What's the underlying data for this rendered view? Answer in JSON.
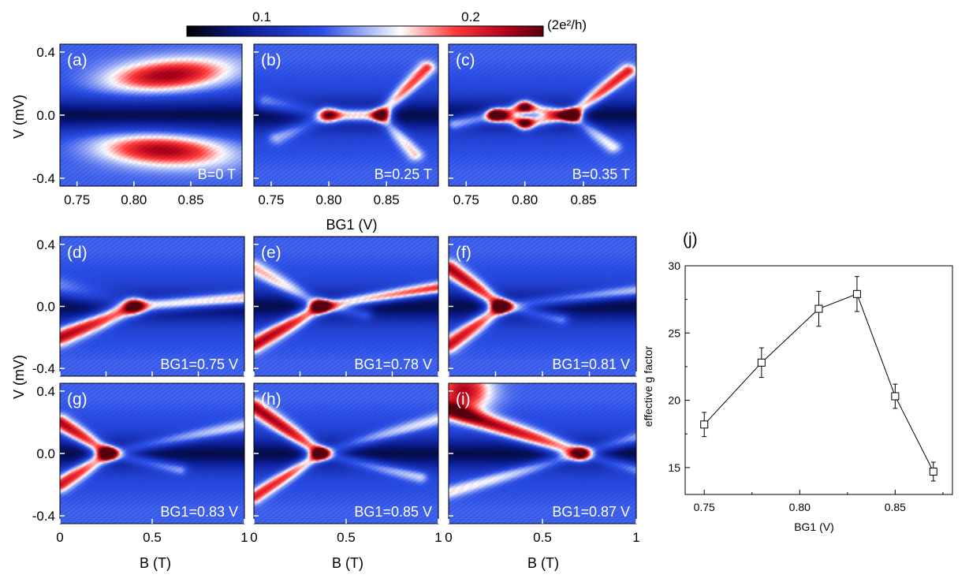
{
  "colorbar": {
    "tick_labels": [
      "0.1",
      "0.2"
    ],
    "tick_values": [
      0.1,
      0.2
    ],
    "unit_label": "(2e²/h)",
    "colors": [
      "#000000",
      "#0a1a8c",
      "#2a4fe8",
      "#ffffff",
      "#ff3a3a",
      "#b0001a",
      "#55000e"
    ]
  },
  "shared_labels": {
    "v_axis": "V (mV)",
    "bg1_axis": "BG1 (V)",
    "b_axis": "B (T)"
  },
  "chart_data": [
    {
      "type": "heatmap",
      "panel": "(a)",
      "annotation": "B=0 T",
      "x_ticks": [
        "0.75",
        "0.80",
        "0.85"
      ],
      "x_tick_values": [
        0.75,
        0.8,
        0.85
      ],
      "y_ticks": [
        "0.4",
        "0.0",
        "-0.4"
      ],
      "y_tick_values": [
        0.4,
        0.0,
        -0.4
      ],
      "xlim": [
        0.735,
        0.895
      ],
      "ylim": [
        -0.45,
        0.45
      ],
      "features": [
        {
          "kind": "blob",
          "x": 0.83,
          "y": 0.25,
          "sx": 0.038,
          "sy": 0.07,
          "amp": 1.0,
          "tilt": 1.2
        },
        {
          "kind": "blob",
          "x": 0.825,
          "y": -0.22,
          "sx": 0.04,
          "sy": 0.07,
          "amp": 1.0,
          "tilt": -0.8
        }
      ]
    },
    {
      "type": "heatmap",
      "panel": "(b)",
      "annotation": "B=0.25 T",
      "x_ticks": [
        "0.75",
        "0.80",
        "0.85"
      ],
      "x_tick_values": [
        0.75,
        0.8,
        0.85
      ],
      "xlim": [
        0.735,
        0.895
      ],
      "ylim": [
        -0.45,
        0.45
      ],
      "features": [
        {
          "kind": "line",
          "x0": 0.8,
          "y0": 0.0,
          "x1": 0.845,
          "y1": 0.0,
          "amp": 1.1,
          "w": 0.035
        },
        {
          "kind": "line",
          "x0": 0.845,
          "y0": 0.0,
          "x1": 0.885,
          "y1": 0.3,
          "amp": 0.8,
          "w": 0.03
        },
        {
          "kind": "line",
          "x0": 0.845,
          "y0": 0.0,
          "x1": 0.875,
          "y1": -0.25,
          "amp": 0.55,
          "w": 0.03
        },
        {
          "kind": "line",
          "x0": 0.8,
          "y0": 0.0,
          "x1": 0.745,
          "y1": 0.08,
          "amp": 0.45,
          "w": 0.04
        },
        {
          "kind": "line",
          "x0": 0.8,
          "y0": 0.0,
          "x1": 0.755,
          "y1": -0.14,
          "amp": 0.4,
          "w": 0.035
        }
      ]
    },
    {
      "type": "heatmap",
      "panel": "(c)",
      "annotation": "B=0.35 T",
      "x_ticks": [
        "0.75",
        "0.80",
        "0.85"
      ],
      "x_tick_values": [
        0.75,
        0.8,
        0.85
      ],
      "xlim": [
        0.735,
        0.895
      ],
      "ylim": [
        -0.45,
        0.45
      ],
      "features": [
        {
          "kind": "line",
          "x0": 0.775,
          "y0": 0.0,
          "x1": 0.8,
          "y1": 0.05,
          "amp": 1.0,
          "w": 0.03
        },
        {
          "kind": "line",
          "x0": 0.8,
          "y0": 0.05,
          "x1": 0.84,
          "y1": 0.0,
          "amp": 1.0,
          "w": 0.03
        },
        {
          "kind": "line",
          "x0": 0.775,
          "y0": 0.0,
          "x1": 0.8,
          "y1": -0.05,
          "amp": 1.0,
          "w": 0.03
        },
        {
          "kind": "line",
          "x0": 0.8,
          "y0": -0.05,
          "x1": 0.84,
          "y1": 0.0,
          "amp": 1.0,
          "w": 0.03
        },
        {
          "kind": "line",
          "x0": 0.84,
          "y0": 0.0,
          "x1": 0.888,
          "y1": 0.28,
          "amp": 0.9,
          "w": 0.03
        },
        {
          "kind": "line",
          "x0": 0.84,
          "y0": 0.0,
          "x1": 0.875,
          "y1": -0.2,
          "amp": 0.5,
          "w": 0.03
        },
        {
          "kind": "line",
          "x0": 0.775,
          "y0": 0.0,
          "x1": 0.74,
          "y1": -0.05,
          "amp": 0.7,
          "w": 0.035
        }
      ]
    },
    {
      "type": "heatmap",
      "panel": "(d)",
      "annotation": "BG1=0.75 V",
      "y_ticks": [
        "0.4",
        "0.0",
        "-0.4"
      ],
      "y_tick_values": [
        0.4,
        0.0,
        -0.4
      ],
      "xlim": [
        0,
        1
      ],
      "ylim": [
        -0.45,
        0.45
      ],
      "features": [
        {
          "kind": "line",
          "x0": 0.0,
          "y0": -0.2,
          "x1": 0.4,
          "y1": 0.0,
          "amp": 1.1,
          "w": 0.04
        },
        {
          "kind": "line",
          "x0": 0.4,
          "y0": 0.0,
          "x1": 1.0,
          "y1": 0.05,
          "amp": 1.0,
          "w": 0.035
        },
        {
          "kind": "line",
          "x0": 0.0,
          "y0": 0.12,
          "x1": 0.4,
          "y1": 0.0,
          "amp": 0.3,
          "w": 0.05
        }
      ]
    },
    {
      "type": "heatmap",
      "panel": "(e)",
      "annotation": "BG1=0.78 V",
      "xlim": [
        0,
        1
      ],
      "ylim": [
        -0.45,
        0.45
      ],
      "features": [
        {
          "kind": "line",
          "x0": 0.0,
          "y0": -0.25,
          "x1": 0.36,
          "y1": 0.0,
          "amp": 1.1,
          "w": 0.035
        },
        {
          "kind": "line",
          "x0": 0.36,
          "y0": 0.0,
          "x1": 1.0,
          "y1": 0.12,
          "amp": 1.0,
          "w": 0.03
        },
        {
          "kind": "line",
          "x0": 0.0,
          "y0": 0.25,
          "x1": 0.36,
          "y1": 0.0,
          "amp": 0.6,
          "w": 0.035
        },
        {
          "kind": "line",
          "x0": 0.36,
          "y0": 0.0,
          "x1": 0.6,
          "y1": -0.05,
          "amp": 0.45,
          "w": 0.03
        }
      ]
    },
    {
      "type": "heatmap",
      "panel": "(f)",
      "annotation": "BG1=0.81 V",
      "xlim": [
        0,
        1
      ],
      "ylim": [
        -0.45,
        0.45
      ],
      "features": [
        {
          "kind": "line",
          "x0": 0.0,
          "y0": 0.25,
          "x1": 0.28,
          "y1": 0.0,
          "amp": 1.1,
          "w": 0.035
        },
        {
          "kind": "line",
          "x0": 0.0,
          "y0": -0.25,
          "x1": 0.28,
          "y1": 0.0,
          "amp": 1.0,
          "w": 0.035
        },
        {
          "kind": "line",
          "x0": 0.28,
          "y0": 0.0,
          "x1": 1.0,
          "y1": 0.1,
          "amp": 0.55,
          "w": 0.03
        },
        {
          "kind": "line",
          "x0": 0.28,
          "y0": 0.0,
          "x1": 0.6,
          "y1": -0.08,
          "amp": 0.45,
          "w": 0.03
        }
      ]
    },
    {
      "type": "heatmap",
      "panel": "(g)",
      "annotation": "BG1=0.83 V",
      "y_ticks": [
        "0.4",
        "0.0",
        "-0.4"
      ],
      "y_tick_values": [
        0.4,
        0.0,
        -0.4
      ],
      "x_ticks": [
        "0",
        "0.5",
        "1"
      ],
      "x_tick_values": [
        0,
        0.5,
        1
      ],
      "xlim": [
        0,
        1
      ],
      "ylim": [
        -0.45,
        0.45
      ],
      "features": [
        {
          "kind": "line",
          "x0": 0.0,
          "y0": 0.2,
          "x1": 0.26,
          "y1": 0.0,
          "amp": 1.1,
          "w": 0.035
        },
        {
          "kind": "line",
          "x0": 0.0,
          "y0": -0.2,
          "x1": 0.26,
          "y1": 0.0,
          "amp": 1.0,
          "w": 0.035
        },
        {
          "kind": "line",
          "x0": 0.26,
          "y0": 0.0,
          "x1": 1.0,
          "y1": 0.18,
          "amp": 0.45,
          "w": 0.03
        },
        {
          "kind": "line",
          "x0": 0.26,
          "y0": 0.0,
          "x1": 0.65,
          "y1": -0.1,
          "amp": 0.45,
          "w": 0.03
        }
      ]
    },
    {
      "type": "heatmap",
      "panel": "(h)",
      "annotation": "BG1=0.85 V",
      "x_ticks": [
        "0",
        "0.5",
        "1"
      ],
      "x_tick_values": [
        0,
        0.5,
        1
      ],
      "xlim": [
        0,
        1
      ],
      "ylim": [
        -0.45,
        0.45
      ],
      "features": [
        {
          "kind": "line",
          "x0": 0.0,
          "y0": 0.3,
          "x1": 0.36,
          "y1": 0.0,
          "amp": 1.1,
          "w": 0.035
        },
        {
          "kind": "line",
          "x0": 0.0,
          "y0": -0.28,
          "x1": 0.36,
          "y1": 0.0,
          "amp": 0.9,
          "w": 0.03
        },
        {
          "kind": "line",
          "x0": 0.36,
          "y0": 0.0,
          "x1": 1.0,
          "y1": 0.22,
          "amp": 0.45,
          "w": 0.03
        },
        {
          "kind": "line",
          "x0": 0.36,
          "y0": 0.0,
          "x1": 0.9,
          "y1": -0.15,
          "amp": 0.45,
          "w": 0.03
        }
      ]
    },
    {
      "type": "heatmap",
      "panel": "(i)",
      "annotation": "BG1=0.87 V",
      "x_ticks": [
        "0",
        "0.5",
        "1"
      ],
      "x_tick_values": [
        0,
        0.5,
        1
      ],
      "xlim": [
        0,
        1
      ],
      "ylim": [
        -0.45,
        0.45
      ],
      "features": [
        {
          "kind": "blob",
          "x": 0.08,
          "y": 0.4,
          "sx": 0.1,
          "sy": 0.1,
          "amp": 0.9,
          "tilt": 0
        },
        {
          "kind": "line",
          "x0": 0.0,
          "y0": 0.28,
          "x1": 0.7,
          "y1": 0.0,
          "amp": 1.1,
          "w": 0.04
        },
        {
          "kind": "line",
          "x0": 0.0,
          "y0": -0.25,
          "x1": 0.7,
          "y1": 0.0,
          "amp": 0.5,
          "w": 0.03
        },
        {
          "kind": "line",
          "x0": 0.7,
          "y0": 0.0,
          "x1": 1.0,
          "y1": 0.1,
          "amp": 0.45,
          "w": 0.03
        },
        {
          "kind": "line",
          "x0": 0.7,
          "y0": 0.0,
          "x1": 1.0,
          "y1": -0.1,
          "amp": 0.4,
          "w": 0.03
        }
      ]
    },
    {
      "type": "scatter",
      "panel": "(j)",
      "xlabel": "BG1 (V)",
      "ylabel": "effective g factor",
      "xlim": [
        0.74,
        0.88
      ],
      "ylim": [
        13,
        30
      ],
      "x_ticks": [
        "0.75",
        "0.80",
        "0.85"
      ],
      "x_tick_values": [
        0.75,
        0.8,
        0.85
      ],
      "y_ticks": [
        "15",
        "20",
        "25",
        "30"
      ],
      "y_tick_values": [
        15,
        20,
        25,
        30
      ],
      "series": [
        {
          "x": [
            0.75,
            0.78,
            0.81,
            0.83,
            0.85,
            0.87
          ],
          "y": [
            18.2,
            22.8,
            26.8,
            27.9,
            20.3,
            14.7
          ],
          "yerr": [
            0.9,
            1.1,
            1.3,
            1.3,
            0.9,
            0.7
          ]
        }
      ]
    }
  ]
}
